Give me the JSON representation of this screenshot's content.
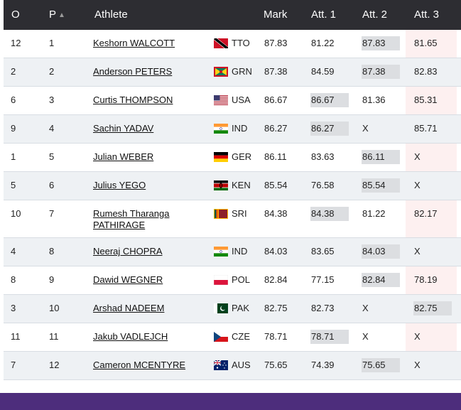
{
  "header": {
    "order": "O",
    "position": "P",
    "athlete": "Athlete",
    "mark": "Mark",
    "att1": "Att. 1",
    "att2": "Att. 2",
    "att3": "Att. 3",
    "sort_indicator": "▲"
  },
  "colors": {
    "header_bg": "#2d2d32",
    "row_alt_bg": "#eef1f4",
    "best_highlight": "#dcdee1",
    "att3_column_bg": "#fdf0f0",
    "footer_bar": "#4d2d7c"
  },
  "rows": [
    {
      "order": "12",
      "pos": "1",
      "athlete": "Keshorn WALCOTT",
      "flag": "trinidad-flag",
      "nat": "TTO",
      "mark": "87.83",
      "att1": "81.22",
      "att2": "87.83",
      "att3": "81.65",
      "best": "att2"
    },
    {
      "order": "2",
      "pos": "2",
      "athlete": "Anderson PETERS",
      "flag": "grenada-flag",
      "nat": "GRN",
      "mark": "87.38",
      "att1": "84.59",
      "att2": "87.38",
      "att3": "82.83",
      "best": "att2"
    },
    {
      "order": "6",
      "pos": "3",
      "athlete": "Curtis THOMPSON",
      "flag": "usa-flag",
      "nat": "USA",
      "mark": "86.67",
      "att1": "86.67",
      "att2": "81.36",
      "att3": "85.31",
      "best": "att1"
    },
    {
      "order": "9",
      "pos": "4",
      "athlete": "Sachin YADAV",
      "flag": "india-flag",
      "nat": "IND",
      "mark": "86.27",
      "att1": "86.27",
      "att2": "X",
      "att3": "85.71",
      "best": "att1"
    },
    {
      "order": "1",
      "pos": "5",
      "athlete": "Julian WEBER",
      "flag": "germany-flag",
      "nat": "GER",
      "mark": "86.11",
      "att1": "83.63",
      "att2": "86.11",
      "att3": "X",
      "best": "att2"
    },
    {
      "order": "5",
      "pos": "6",
      "athlete": "Julius YEGO",
      "flag": "kenya-flag",
      "nat": "KEN",
      "mark": "85.54",
      "att1": "76.58",
      "att2": "85.54",
      "att3": "X",
      "best": "att2"
    },
    {
      "order": "10",
      "pos": "7",
      "athlete": "Rumesh Tharanga PATHIRAGE",
      "flag": "srilanka-flag",
      "nat": "SRI",
      "mark": "84.38",
      "att1": "84.38",
      "att2": "81.22",
      "att3": "82.17",
      "best": "att1"
    },
    {
      "order": "4",
      "pos": "8",
      "athlete": "Neeraj CHOPRA",
      "flag": "india-flag",
      "nat": "IND",
      "mark": "84.03",
      "att1": "83.65",
      "att2": "84.03",
      "att3": "X",
      "best": "att2"
    },
    {
      "order": "8",
      "pos": "9",
      "athlete": "Dawid WEGNER",
      "flag": "poland-flag",
      "nat": "POL",
      "mark": "82.84",
      "att1": "77.15",
      "att2": "82.84",
      "att3": "78.19",
      "best": "att2"
    },
    {
      "order": "3",
      "pos": "10",
      "athlete": "Arshad NADEEM",
      "flag": "pakistan-flag",
      "nat": "PAK",
      "mark": "82.75",
      "att1": "82.73",
      "att2": "X",
      "att3": "82.75",
      "best": "att3"
    },
    {
      "order": "11",
      "pos": "11",
      "athlete": "Jakub VADLEJCH",
      "flag": "czech-flag",
      "nat": "CZE",
      "mark": "78.71",
      "att1": "78.71",
      "att2": "X",
      "att3": "X",
      "best": "att1"
    },
    {
      "order": "7",
      "pos": "12",
      "athlete": "Cameron MCENTYRE",
      "flag": "australia-flag",
      "nat": "AUS",
      "mark": "75.65",
      "att1": "74.39",
      "att2": "75.65",
      "att3": "X",
      "best": "att2"
    }
  ]
}
